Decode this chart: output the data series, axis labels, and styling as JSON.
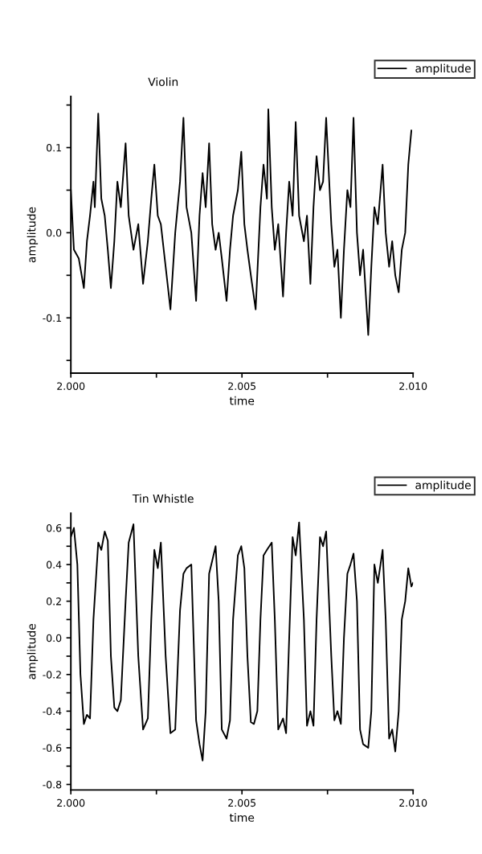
{
  "chart_data": [
    {
      "type": "line",
      "title": "Violin",
      "xlabel": "time",
      "ylabel": "amplitude",
      "legend": "top right",
      "grid": false,
      "marker": "none",
      "line_style": "solid",
      "xlim": [
        2.0,
        2.01
      ],
      "xticks": [
        {
          "value": 2.0,
          "label": "2.000"
        },
        {
          "value": 2.0025,
          "label": null
        },
        {
          "value": 2.005,
          "label": "2.005"
        },
        {
          "value": 2.0075,
          "label": null
        },
        {
          "value": 2.01,
          "label": "2.010"
        }
      ],
      "ylim": [
        -0.165,
        0.16
      ],
      "yticks": [
        {
          "value": -0.15,
          "label": null
        },
        {
          "value": -0.1,
          "label": "-0.1"
        },
        {
          "value": -0.05,
          "label": null
        },
        {
          "value": 0.0,
          "label": "0.0"
        },
        {
          "value": 0.05,
          "label": null
        },
        {
          "value": 0.1,
          "label": "0.1"
        },
        {
          "value": 0.15,
          "label": null
        }
      ],
      "x": [
        2.0,
        2.00009,
        2.00023,
        2.00038,
        2.00047,
        2.00056,
        2.00066,
        2.0007,
        2.0008,
        2.00089,
        2.00099,
        2.00108,
        2.00117,
        2.00127,
        2.00136,
        2.00146,
        2.0016,
        2.00169,
        2.00183,
        2.00197,
        2.00211,
        2.00225,
        2.00235,
        2.00244,
        2.00254,
        2.00263,
        2.00277,
        2.00291,
        2.00305,
        2.00319,
        2.00329,
        2.00338,
        2.00352,
        2.00366,
        2.00376,
        2.00385,
        2.00394,
        2.00404,
        2.00413,
        2.00423,
        2.00432,
        2.00441,
        2.00455,
        2.00465,
        2.00474,
        2.00488,
        2.00498,
        2.00507,
        2.00516,
        2.00526,
        2.0054,
        2.00554,
        2.00563,
        2.00573,
        2.00577,
        2.00587,
        2.00596,
        2.00606,
        2.0062,
        2.00629,
        2.00638,
        2.00648,
        2.00657,
        2.00667,
        2.00681,
        2.0069,
        2.007,
        2.00709,
        2.00718,
        2.00728,
        2.00737,
        2.00746,
        2.00761,
        2.0077,
        2.00779,
        2.00789,
        2.00798,
        2.00808,
        2.00817,
        2.00826,
        2.00836,
        2.00845,
        2.00854,
        2.00869,
        2.00878,
        2.00887,
        2.00897,
        2.00911,
        2.0092,
        2.0093,
        2.00939,
        2.00948,
        2.00958,
        2.00967,
        2.00977,
        2.00986,
        2.00995
      ],
      "series": [
        {
          "name": "amplitude",
          "color": "#000000",
          "values": [
            0.05,
            -0.02,
            -0.03,
            -0.065,
            -0.01,
            0.02,
            0.06,
            0.03,
            0.14,
            0.04,
            0.02,
            -0.02,
            -0.065,
            -0.01,
            0.06,
            0.03,
            0.105,
            0.02,
            -0.02,
            0.01,
            -0.06,
            -0.01,
            0.04,
            0.08,
            0.02,
            0.01,
            -0.04,
            -0.09,
            0.0,
            0.06,
            0.135,
            0.03,
            0.0,
            -0.08,
            0.02,
            0.07,
            0.03,
            0.105,
            0.01,
            -0.02,
            0.0,
            -0.03,
            -0.08,
            -0.02,
            0.02,
            0.05,
            0.095,
            0.01,
            -0.02,
            -0.05,
            -0.09,
            0.03,
            0.08,
            0.04,
            0.145,
            0.03,
            -0.02,
            0.01,
            -0.075,
            0.0,
            0.06,
            0.02,
            0.13,
            0.02,
            -0.01,
            0.02,
            -0.06,
            0.03,
            0.09,
            0.05,
            0.06,
            0.135,
            0.01,
            -0.04,
            -0.02,
            -0.1,
            -0.02,
            0.05,
            0.03,
            0.135,
            0.0,
            -0.05,
            -0.02,
            -0.12,
            -0.04,
            0.03,
            0.01,
            0.08,
            0.0,
            -0.04,
            -0.01,
            -0.05,
            -0.07,
            -0.02,
            0.0,
            0.08,
            0.12
          ]
        }
      ]
    },
    {
      "type": "line",
      "title": "Tin Whistle",
      "xlabel": "time",
      "ylabel": "amplitude",
      "legend": "top right",
      "grid": false,
      "marker": "none",
      "line_style": "solid",
      "xlim": [
        2.0,
        2.01
      ],
      "xticks": [
        {
          "value": 2.0,
          "label": "2.000"
        },
        {
          "value": 2.0025,
          "label": null
        },
        {
          "value": 2.005,
          "label": "2.005"
        },
        {
          "value": 2.0075,
          "label": null
        },
        {
          "value": 2.01,
          "label": "2.010"
        }
      ],
      "ylim": [
        -0.83,
        0.68
      ],
      "yticks": [
        {
          "value": -0.8,
          "label": "-0.8"
        },
        {
          "value": -0.7,
          "label": null
        },
        {
          "value": -0.6,
          "label": "-0.6"
        },
        {
          "value": -0.5,
          "label": null
        },
        {
          "value": -0.4,
          "label": "-0.4"
        },
        {
          "value": -0.3,
          "label": null
        },
        {
          "value": -0.2,
          "label": "-0.2"
        },
        {
          "value": -0.1,
          "label": null
        },
        {
          "value": 0.0,
          "label": "0.0"
        },
        {
          "value": 0.1,
          "label": null
        },
        {
          "value": 0.2,
          "label": "0.2"
        },
        {
          "value": 0.3,
          "label": null
        },
        {
          "value": 0.4,
          "label": "0.4"
        },
        {
          "value": 0.5,
          "label": null
        },
        {
          "value": 0.6,
          "label": "0.6"
        }
      ],
      "x": [
        2.0,
        2.00009,
        2.00019,
        2.00028,
        2.00038,
        2.00047,
        2.00056,
        2.00066,
        2.0008,
        2.00089,
        2.00099,
        2.00108,
        2.00117,
        2.00127,
        2.00136,
        2.00146,
        2.0016,
        2.00169,
        2.00183,
        2.00197,
        2.00211,
        2.00225,
        2.00235,
        2.00244,
        2.00254,
        2.00263,
        2.00277,
        2.00291,
        2.00305,
        2.00319,
        2.00329,
        2.00338,
        2.00352,
        2.00366,
        2.00376,
        2.00385,
        2.00394,
        2.00404,
        2.00413,
        2.00423,
        2.00432,
        2.00441,
        2.00455,
        2.00465,
        2.00474,
        2.00488,
        2.00498,
        2.00507,
        2.00516,
        2.00526,
        2.00535,
        2.00545,
        2.00554,
        2.00563,
        2.00573,
        2.00587,
        2.00596,
        2.00606,
        2.0062,
        2.00629,
        2.00638,
        2.00648,
        2.00657,
        2.00667,
        2.00681,
        2.0069,
        2.007,
        2.00709,
        2.00718,
        2.00728,
        2.00737,
        2.00746,
        2.00761,
        2.0077,
        2.00779,
        2.00789,
        2.00798,
        2.00808,
        2.00817,
        2.00826,
        2.00836,
        2.00845,
        2.00854,
        2.00869,
        2.00878,
        2.00887,
        2.00897,
        2.00911,
        2.0092,
        2.0093,
        2.00939,
        2.00948,
        2.00958,
        2.00967,
        2.00977,
        2.00986,
        2.00995,
        2.01
      ],
      "series": [
        {
          "name": "amplitude",
          "color": "#000000",
          "values": [
            0.55,
            0.6,
            0.4,
            -0.2,
            -0.47,
            -0.42,
            -0.44,
            0.1,
            0.52,
            0.48,
            0.58,
            0.53,
            -0.1,
            -0.38,
            -0.4,
            -0.34,
            0.2,
            0.52,
            0.62,
            -0.1,
            -0.5,
            -0.44,
            0.1,
            0.48,
            0.38,
            0.52,
            -0.1,
            -0.52,
            -0.5,
            0.15,
            0.35,
            0.38,
            0.4,
            -0.45,
            -0.58,
            -0.67,
            -0.4,
            0.35,
            0.42,
            0.5,
            0.2,
            -0.5,
            -0.55,
            -0.45,
            0.1,
            0.45,
            0.5,
            0.38,
            -0.1,
            -0.46,
            -0.47,
            -0.4,
            0.1,
            0.45,
            0.48,
            0.52,
            0.1,
            -0.5,
            -0.44,
            -0.52,
            0.0,
            0.55,
            0.45,
            0.63,
            0.1,
            -0.48,
            -0.4,
            -0.48,
            0.1,
            0.55,
            0.5,
            0.58,
            -0.1,
            -0.45,
            -0.4,
            -0.47,
            0.0,
            0.35,
            0.4,
            0.46,
            0.2,
            -0.5,
            -0.58,
            -0.6,
            -0.4,
            0.4,
            0.3,
            0.48,
            0.1,
            -0.55,
            -0.5,
            -0.62,
            -0.4,
            0.1,
            0.2,
            0.38,
            0.28,
            0.3
          ]
        }
      ]
    }
  ]
}
